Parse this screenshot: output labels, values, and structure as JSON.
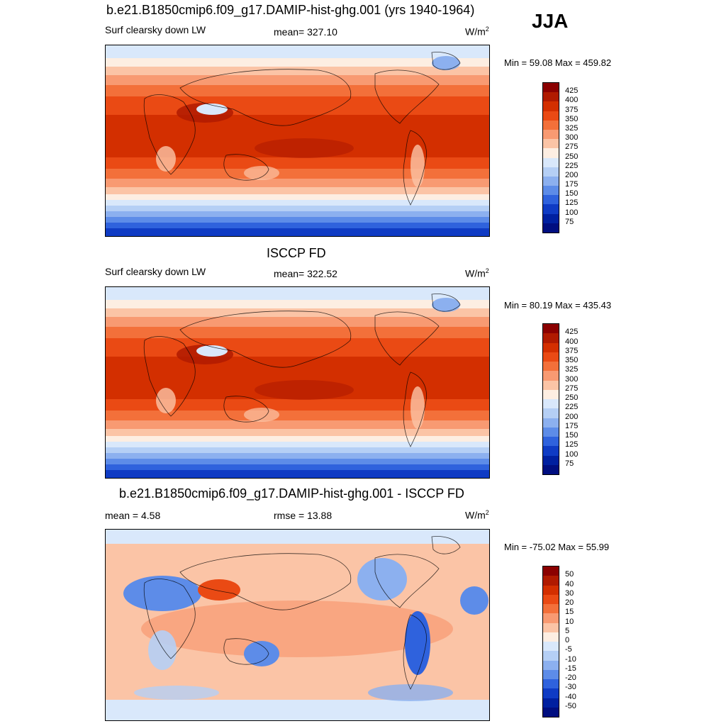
{
  "season": "JJA",
  "panels": [
    {
      "title": "b.e21.B1850cmip6.f09_g17.DAMIP-hist-ghg.001 (yrs 1940-1964)",
      "left_label": "Surf clearsky down LW",
      "center_label": "mean= 327.10",
      "units": "W/m",
      "minmax": "Min =  59.08 Max = 459.82",
      "kind": "abs",
      "colorbar": {
        "labels": [
          "425",
          "400",
          "375",
          "350",
          "325",
          "300",
          "275",
          "250",
          "225",
          "200",
          "175",
          "150",
          "125",
          "100",
          "75"
        ],
        "colors": [
          "#8b0000",
          "#b01a00",
          "#d32f00",
          "#ea4a14",
          "#f3703a",
          "#f89a72",
          "#fbc4a6",
          "#fdeee2",
          "#d9e8fb",
          "#b5cff5",
          "#8cb0ef",
          "#5d8ce8",
          "#2f62dd",
          "#0f3bc4",
          "#0020a0",
          "#000e80"
        ]
      }
    },
    {
      "title": "ISCCP FD",
      "left_label": "Surf clearsky down LW",
      "center_label": "mean= 322.52",
      "units": "W/m",
      "minmax": "Min =  80.19 Max = 435.43",
      "kind": "abs",
      "colorbar": {
        "labels": [
          "425",
          "400",
          "375",
          "350",
          "325",
          "300",
          "275",
          "250",
          "225",
          "200",
          "175",
          "150",
          "125",
          "100",
          "75"
        ],
        "colors": [
          "#8b0000",
          "#b01a00",
          "#d32f00",
          "#ea4a14",
          "#f3703a",
          "#f89a72",
          "#fbc4a6",
          "#fdeee2",
          "#d9e8fb",
          "#b5cff5",
          "#8cb0ef",
          "#5d8ce8",
          "#2f62dd",
          "#0f3bc4",
          "#0020a0",
          "#000e80"
        ]
      }
    },
    {
      "title": "b.e21.B1850cmip6.f09_g17.DAMIP-hist-ghg.001 - ISCCP FD",
      "left_label": "mean =   4.58",
      "center_label": "rmse =  13.88",
      "units": "W/m",
      "minmax": "Min = -75.02 Max =  55.99",
      "kind": "diff",
      "colorbar": {
        "labels": [
          "50",
          "40",
          "30",
          "20",
          "15",
          "10",
          "5",
          "0",
          "-5",
          "-10",
          "-15",
          "-20",
          "-30",
          "-40",
          "-50"
        ],
        "colors": [
          "#8b0000",
          "#b01a00",
          "#d32f00",
          "#ea4a14",
          "#f3703a",
          "#f89a72",
          "#fbc4a6",
          "#fdeee2",
          "#d9e8fb",
          "#b5cff5",
          "#8cb0ef",
          "#5d8ce8",
          "#2f62dd",
          "#0f3bc4",
          "#0020a0",
          "#000e80"
        ]
      }
    }
  ]
}
